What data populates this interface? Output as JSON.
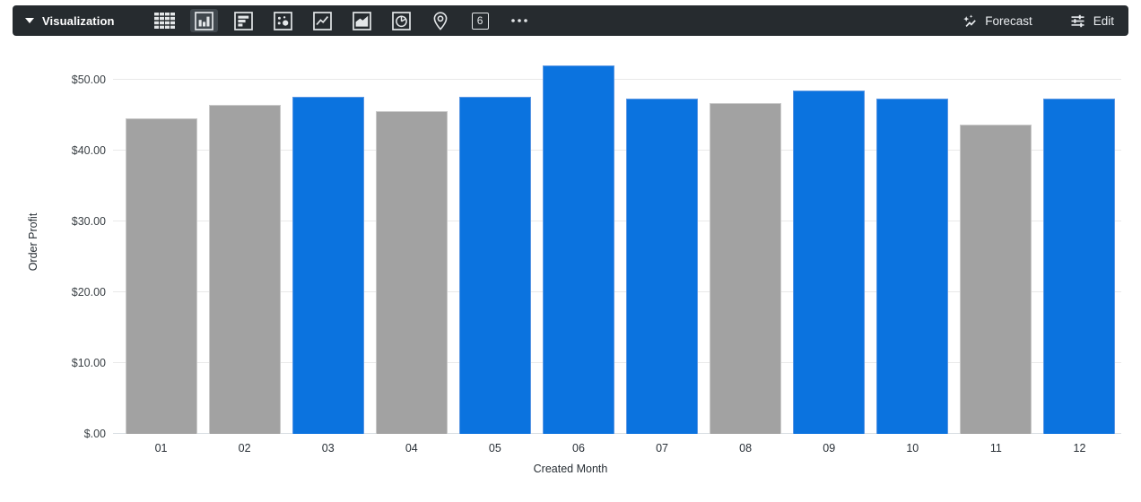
{
  "toolbar": {
    "visualization_label": "Visualization",
    "chart_type_icons": [
      {
        "name": "table",
        "selected": false
      },
      {
        "name": "column-chart",
        "selected": true
      },
      {
        "name": "bar-chart",
        "selected": false
      },
      {
        "name": "scatter",
        "selected": false
      },
      {
        "name": "line-chart",
        "selected": false
      },
      {
        "name": "area-chart",
        "selected": false
      },
      {
        "name": "pie-chart",
        "selected": false
      },
      {
        "name": "map",
        "selected": false
      },
      {
        "name": "single-value",
        "selected": false
      },
      {
        "name": "more-options",
        "selected": false
      }
    ],
    "single_value_glyph": "6",
    "forecast_label": "Forecast",
    "edit_label": "Edit",
    "colors": {
      "bar_background": "#262b2f",
      "selected_slot": "#41484e",
      "icon": "#e3e6e8"
    }
  },
  "chart_data": {
    "type": "bar",
    "title": "",
    "xlabel": "Created Month",
    "ylabel": "Order Profit",
    "categories": [
      "01",
      "02",
      "03",
      "04",
      "05",
      "06",
      "07",
      "08",
      "09",
      "10",
      "11",
      "12"
    ],
    "values": [
      44.5,
      46.4,
      47.6,
      45.6,
      47.6,
      52.0,
      47.3,
      46.7,
      48.5,
      47.3,
      43.6,
      47.3
    ],
    "bar_color_keys": [
      "default",
      "default",
      "highlight",
      "default",
      "highlight",
      "highlight",
      "highlight",
      "default",
      "highlight",
      "highlight",
      "default",
      "highlight"
    ],
    "bar_palette": {
      "default": {
        "fill": "#a2a2a2",
        "stroke": "#c9c9c9"
      },
      "highlight": {
        "fill": "#0b73df",
        "stroke": "#5b97e3"
      }
    },
    "y_ticks": [
      {
        "label": "$.00",
        "value": 0
      },
      {
        "label": "$10.00",
        "value": 10
      },
      {
        "label": "$20.00",
        "value": 20
      },
      {
        "label": "$30.00",
        "value": 30
      },
      {
        "label": "$40.00",
        "value": 40
      },
      {
        "label": "$50.00",
        "value": 50
      }
    ],
    "ylim": [
      0,
      53
    ],
    "grid": true,
    "legend": "none"
  }
}
